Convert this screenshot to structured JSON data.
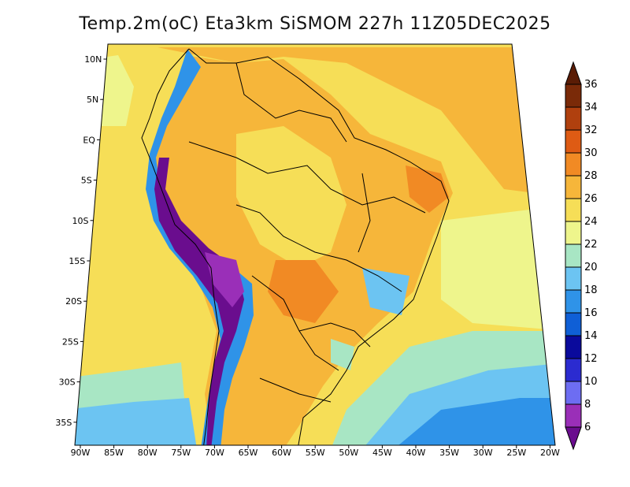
{
  "title": "Temp.2m(oC) Eta3km SiSMOM 227h 11Z05DEC2025",
  "map": {
    "lat_labels": [
      "10N",
      "5N",
      "EQ",
      "5S",
      "10S",
      "15S",
      "20S",
      "25S",
      "30S",
      "35S"
    ],
    "lon_labels": [
      "90W",
      "85W",
      "80W",
      "75W",
      "70W",
      "65W",
      "60W",
      "55W",
      "50W",
      "45W",
      "40W",
      "35W",
      "30W",
      "25W",
      "20W"
    ]
  },
  "colorbar": {
    "levels": [
      "6",
      "8",
      "10",
      "12",
      "14",
      "16",
      "18",
      "20",
      "22",
      "24",
      "26",
      "28",
      "30",
      "32",
      "34",
      "36"
    ],
    "colors": [
      "#6a0d8e",
      "#9a2fb8",
      "#6d6df2",
      "#2b2bd0",
      "#0a0a9c",
      "#0f5fd6",
      "#2f93e8",
      "#6cc4f2",
      "#a8e6c4",
      "#eef58c",
      "#f6de57",
      "#f6b63a",
      "#f18a24",
      "#de5b14",
      "#b0400e",
      "#7a2a08",
      "#5a1c05"
    ]
  },
  "colors": {
    "outline": "#000000",
    "ocean_warm": "#f6de57",
    "ocean_cool": "#eef58c"
  }
}
